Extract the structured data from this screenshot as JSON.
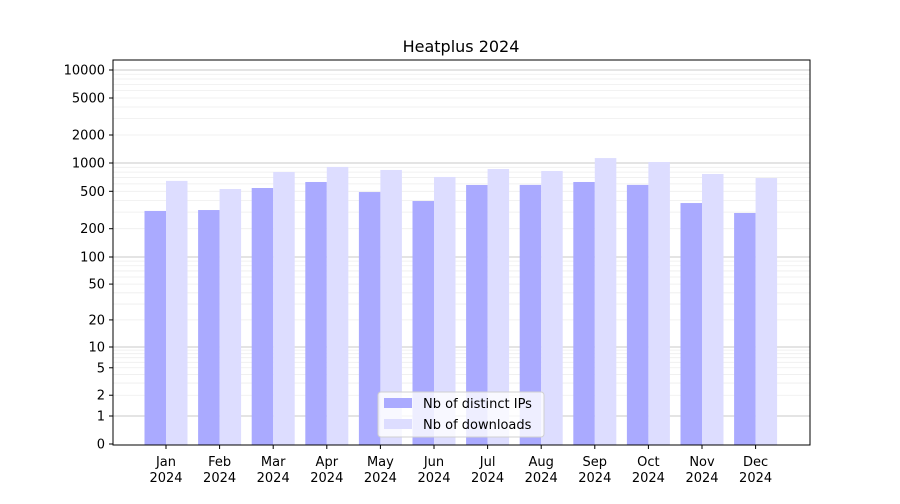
{
  "chart_data": {
    "type": "bar",
    "title": "Heatplus 2024",
    "xlabel": "",
    "ylabel": "",
    "yscale": "symlog",
    "ylim": [
      0,
      12000
    ],
    "grid": true,
    "legend_placement": "bottom-center",
    "categories": [
      "Jan\n2024",
      "Feb\n2024",
      "Mar\n2024",
      "Apr\n2024",
      "May\n2024",
      "Jun\n2024",
      "Jul\n2024",
      "Aug\n2024",
      "Sep\n2024",
      "Oct\n2024",
      "Nov\n2024",
      "Dec\n2024"
    ],
    "yticks": [
      "0",
      "1",
      "2",
      "5",
      "10",
      "20",
      "50",
      "100",
      "200",
      "500",
      "1000",
      "2000",
      "5000",
      "10000"
    ],
    "series": [
      {
        "name": "Nb of distinct IPs",
        "color": "#aaaaff",
        "values": [
          309,
          316,
          542,
          628,
          491,
          394,
          584,
          585,
          628,
          585,
          375,
          294
        ]
      },
      {
        "name": "Nb of downloads",
        "color": "#ddddff",
        "values": [
          645,
          529,
          802,
          907,
          843,
          710,
          863,
          822,
          1130,
          1025,
          764,
          692
        ]
      }
    ]
  }
}
